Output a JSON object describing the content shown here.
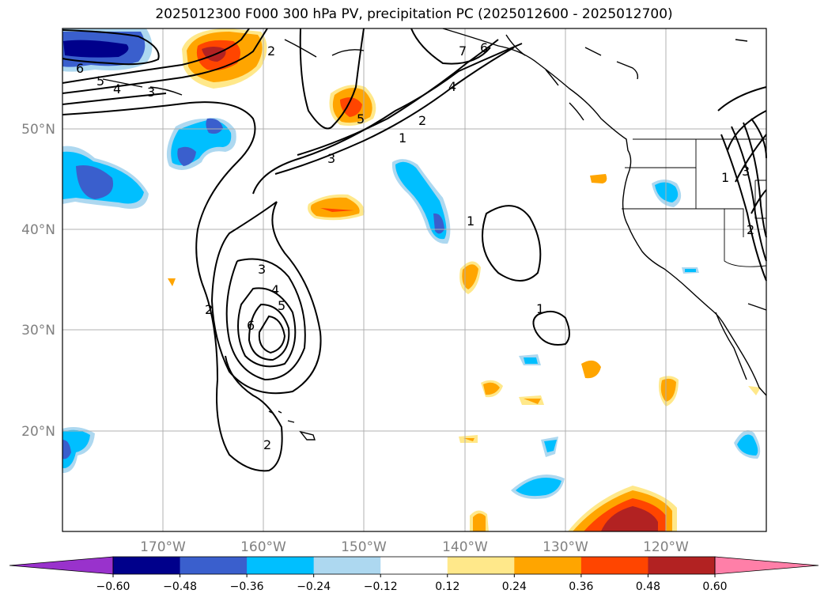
{
  "title": "2025012300 F000 300 hPa PV, precipitation PC (2025012600 - 2025012700)",
  "map": {
    "projection": "PlateCarree",
    "lon_range": [
      -180,
      -110
    ],
    "lat_range": [
      10,
      60
    ],
    "lon_ticks": [
      "170°W",
      "160°W",
      "150°W",
      "140°W",
      "130°W",
      "120°W"
    ],
    "lat_ticks": [
      "20°N",
      "30°N",
      "40°N",
      "50°N"
    ],
    "grid": true
  },
  "pv_contour_labels": [
    "1",
    "2",
    "3",
    "4",
    "5",
    "6",
    "7"
  ],
  "colorbar": {
    "ticks": [
      "−0.60",
      "−0.48",
      "−0.36",
      "−0.24",
      "−0.12",
      "0.12",
      "0.24",
      "0.36",
      "0.48",
      "0.60"
    ],
    "colors": [
      "#9932cc",
      "#00008b",
      "#3a5fcd",
      "#00bfff",
      "#add8f0",
      "#ffffff",
      "#ffe88a",
      "#ffa500",
      "#ff4500",
      "#b22222",
      "#ff7fa8"
    ],
    "extend": "both"
  }
}
